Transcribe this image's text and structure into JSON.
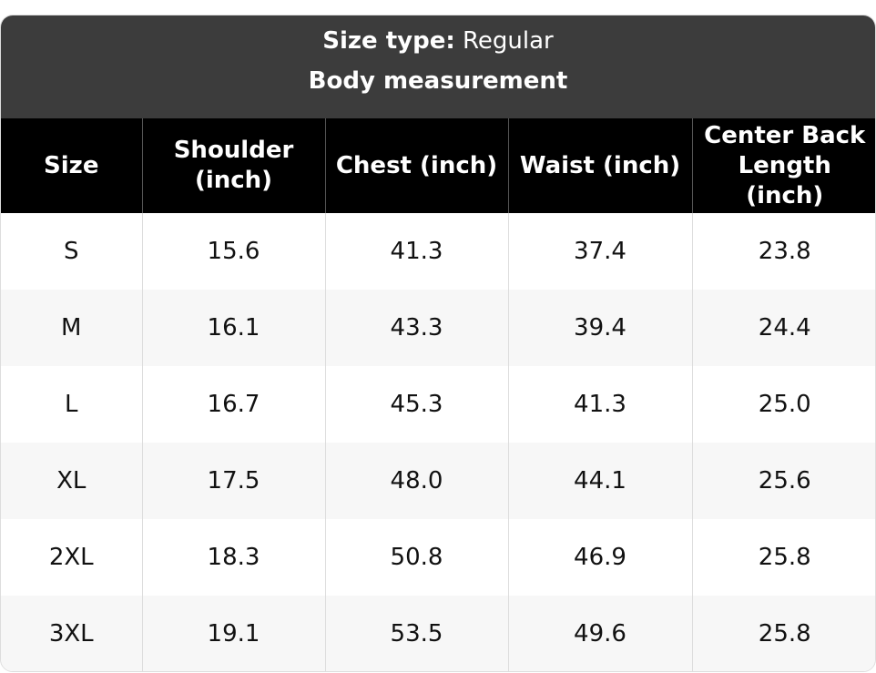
{
  "header": {
    "size_type_label": "Size type:",
    "size_type": "Regular",
    "subtitle": "Body measurement"
  },
  "table": {
    "columns": [
      "Size",
      "Shoulder (inch)",
      "Chest (inch)",
      "Waist (inch)",
      "Center Back Length (inch)"
    ],
    "rows": [
      [
        "S",
        "15.6",
        "41.3",
        "37.4",
        "23.8"
      ],
      [
        "M",
        "16.1",
        "43.3",
        "39.4",
        "24.4"
      ],
      [
        "L",
        "16.7",
        "45.3",
        "41.3",
        "25.0"
      ],
      [
        "XL",
        "17.5",
        "48.0",
        "44.1",
        "25.6"
      ],
      [
        "2XL",
        "18.3",
        "50.8",
        "46.9",
        "25.8"
      ],
      [
        "3XL",
        "19.1",
        "53.5",
        "49.6",
        "25.8"
      ]
    ]
  }
}
